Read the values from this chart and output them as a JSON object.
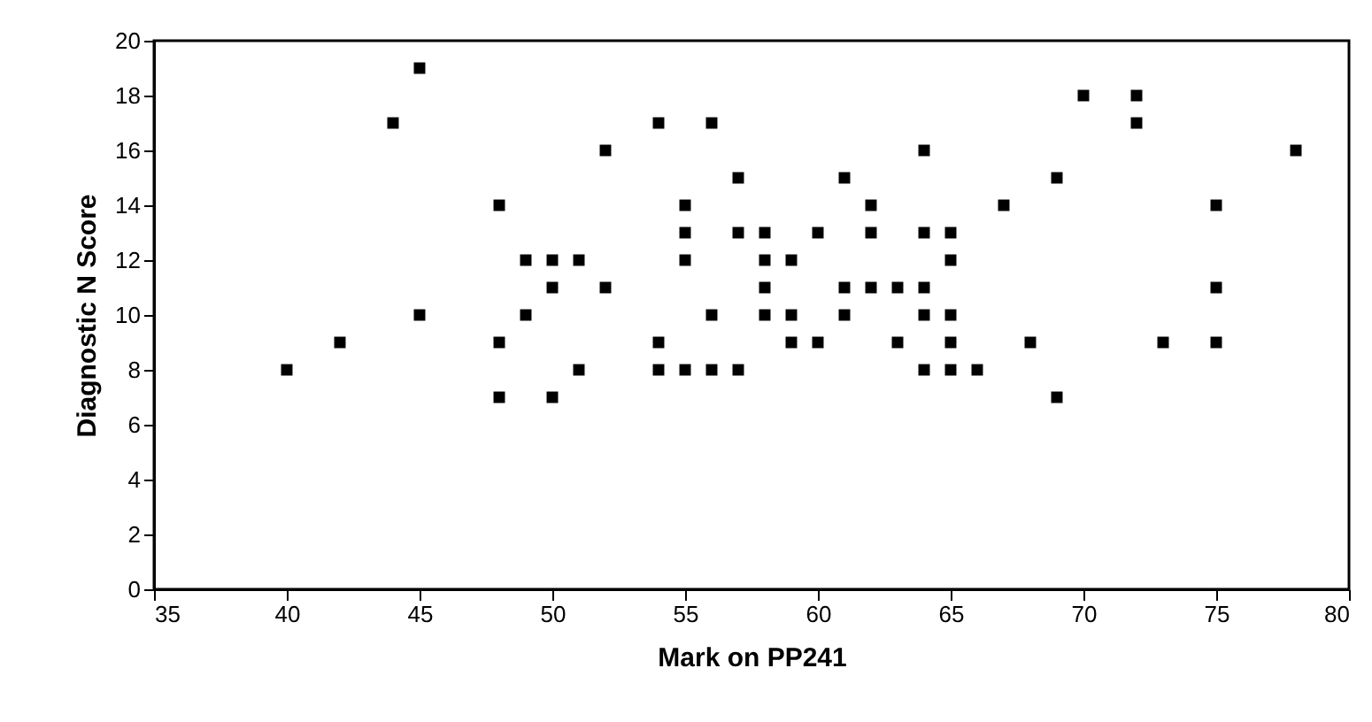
{
  "chart_data": {
    "type": "scatter",
    "xlabel": "Mark on PP241",
    "ylabel": "Diagnostic N Score",
    "x": [
      40,
      42,
      44,
      45,
      45,
      48,
      48,
      48,
      49,
      49,
      50,
      50,
      50,
      51,
      51,
      52,
      52,
      54,
      54,
      54,
      55,
      55,
      55,
      55,
      56,
      56,
      56,
      57,
      57,
      57,
      58,
      58,
      58,
      58,
      59,
      59,
      59,
      60,
      60,
      61,
      61,
      61,
      62,
      62,
      62,
      63,
      63,
      64,
      64,
      64,
      64,
      64,
      65,
      65,
      65,
      65,
      65,
      66,
      67,
      68,
      69,
      69,
      70,
      72,
      72,
      73,
      75,
      75,
      75,
      78
    ],
    "series": [
      {
        "color": "#000000",
        "values": [
          8,
          9,
          17,
          19,
          10,
          14,
          9,
          7,
          12,
          10,
          12,
          11,
          7,
          12,
          8,
          16,
          11,
          17,
          9,
          8,
          14,
          13,
          12,
          8,
          17,
          10,
          8,
          15,
          13,
          8,
          13,
          12,
          11,
          10,
          12,
          10,
          9,
          13,
          9,
          15,
          11,
          10,
          14,
          13,
          11,
          11,
          9,
          16,
          13,
          11,
          10,
          8,
          13,
          12,
          10,
          9,
          8,
          8,
          14,
          9,
          15,
          7,
          18,
          18,
          17,
          9,
          14,
          11,
          9,
          16
        ]
      }
    ],
    "xlim": [
      35,
      80
    ],
    "xticks": [
      35,
      40,
      45,
      50,
      55,
      60,
      65,
      70,
      75,
      80
    ],
    "ylim": [
      0,
      20
    ],
    "yticks": [
      0,
      2,
      4,
      6,
      8,
      10,
      12,
      14,
      16,
      18,
      20
    ],
    "grid": false,
    "marker": "square"
  }
}
